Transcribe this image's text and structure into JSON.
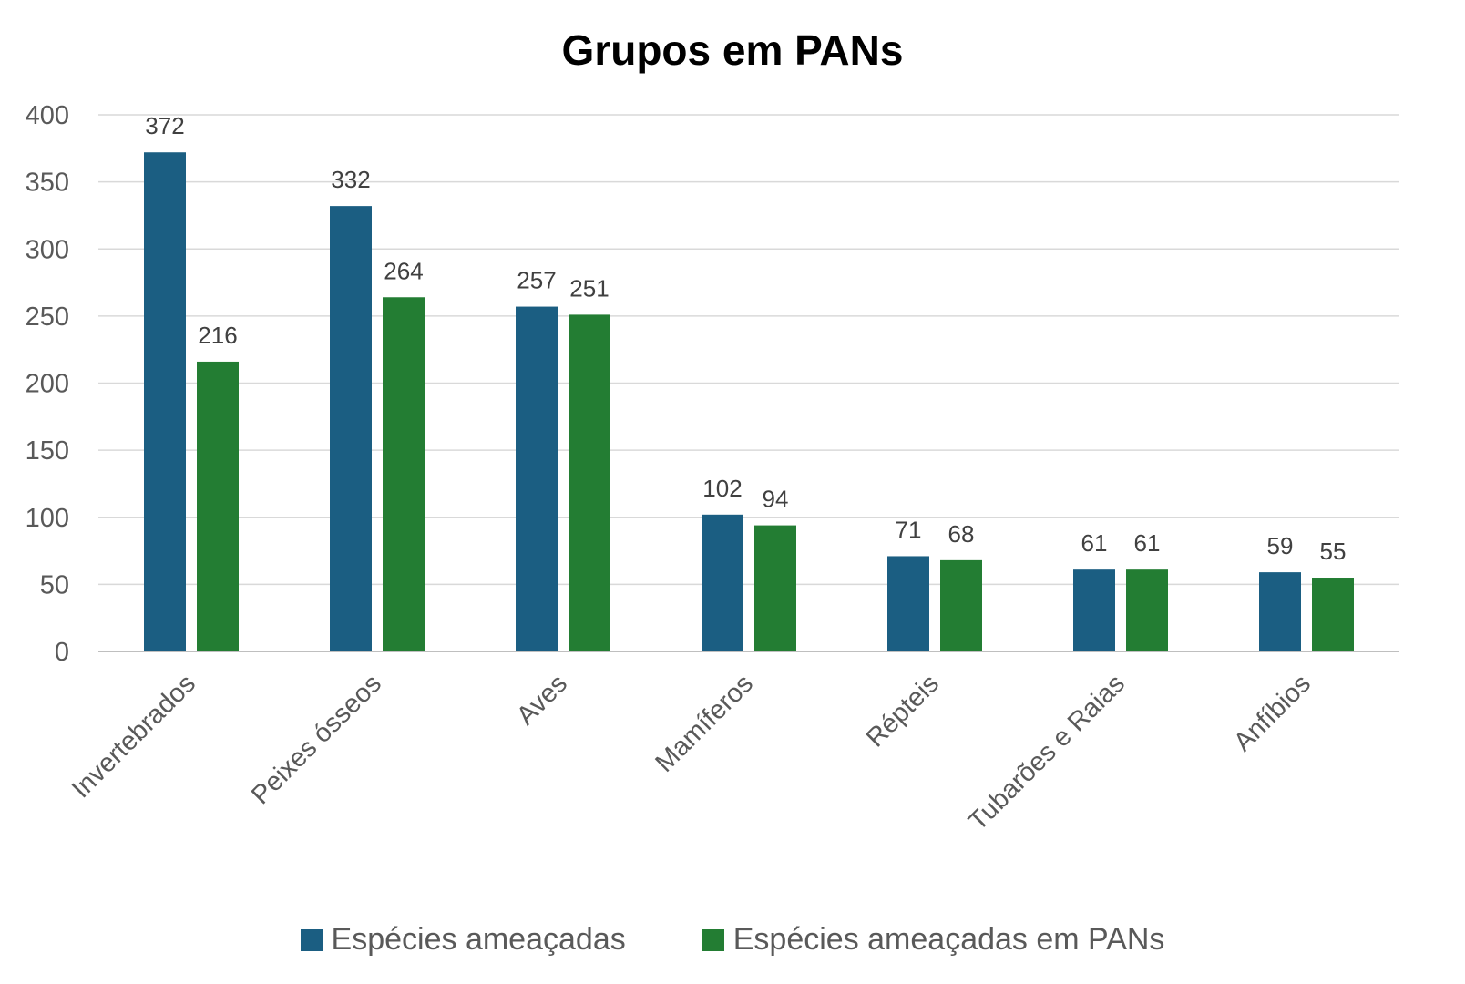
{
  "chart_data": {
    "type": "bar",
    "title": "Grupos em PANs",
    "xlabel": "",
    "ylabel": "",
    "ylim": [
      0,
      400
    ],
    "yticks": [
      0,
      50,
      100,
      150,
      200,
      250,
      300,
      350,
      400
    ],
    "grid": true,
    "legend_position": "bottom",
    "categories": [
      "Invertebrados",
      "Peixes ósseos",
      "Aves",
      "Mamíferos",
      "Répteis",
      "Tubarões e Raias",
      "Anfíbios"
    ],
    "series": [
      {
        "name": "Espécies ameaçadas",
        "color": "#1b5e82",
        "values": [
          372,
          332,
          257,
          102,
          71,
          61,
          59
        ]
      },
      {
        "name": "Espécies ameaçadas em PANs",
        "color": "#237d33",
        "values": [
          216,
          264,
          251,
          94,
          68,
          61,
          55
        ]
      }
    ]
  }
}
